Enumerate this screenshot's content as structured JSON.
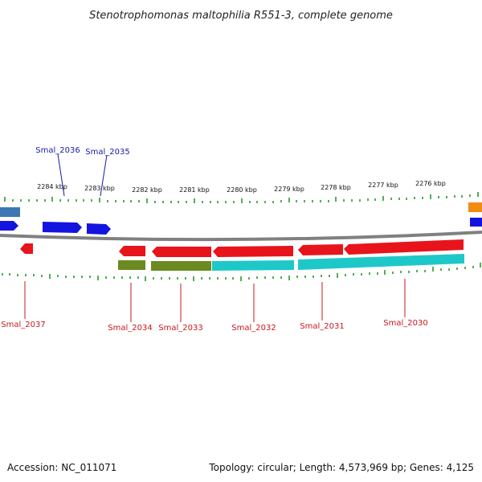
{
  "title": "Stenotrophomonas maltophilia R551-3, complete genome",
  "ruler": [
    "2284 kbp",
    "2283 kbp",
    "2282 kbp",
    "2281 kbp",
    "2280 kbp",
    "2279 kbp",
    "2278 kbp",
    "2277 kbp",
    "2276 kbp"
  ],
  "genes_top": [
    "Smal_2036",
    "Smal_2035"
  ],
  "genes_bottom": [
    "Smal_2037",
    "Smal_2034",
    "Smal_2033",
    "Smal_2032",
    "Smal_2031",
    "Smal_2030"
  ],
  "footer": {
    "accession": "Accession: NC_011071",
    "summary": "Topology: circular; Length: 4,573,969 bp; Genes: 4,125"
  },
  "colors": {
    "forward_cds": "#1414e0",
    "reverse_cds": "#e8141c",
    "olive_track": "#6b8a22",
    "cyan_track": "#1ec8c8",
    "orange_track": "#f08c14",
    "slate_track": "#3c78b4",
    "backbone": "#808080",
    "tick": "#2a9a2a",
    "label_blue": "#1a1aa8",
    "label_red": "#c8181e"
  }
}
